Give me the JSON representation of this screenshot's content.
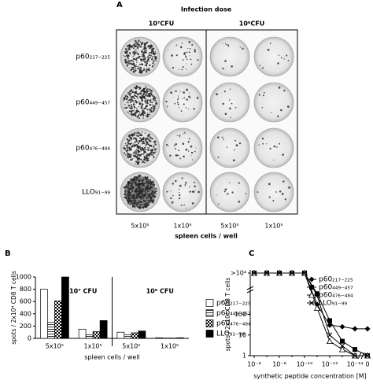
{
  "panel_a": {
    "label": "A",
    "title": "Infection dose",
    "doses": [
      "10⁷CFU",
      "10⁶CFU"
    ],
    "rows": [
      "p60₂₁₇₋₂₂₅",
      "p60₄₄₉₋₄₅₇",
      "p60₄₇₆₋₄₈₄",
      "LLO₉₁₋₉₉"
    ],
    "columns": [
      "5x10⁵",
      "1x10⁵",
      "5x10⁵",
      "1x10⁵"
    ],
    "xlabel": "spleen cells / well"
  },
  "chart_data": [
    {
      "type": "bar",
      "panel": "B",
      "ylabel": "spots / 2x10⁴ CD8 T cells",
      "xlabel": "spleen cells / well",
      "groups": [
        "10⁷ CFU",
        "10⁶ CFU"
      ],
      "categories": [
        "5x10⁵",
        "1x10⁵",
        "5x10⁵",
        "1x10⁵"
      ],
      "ylim": [
        0,
        1000
      ],
      "yticks": [
        0,
        200,
        400,
        600,
        800,
        1000
      ],
      "legend": "right",
      "series": [
        {
          "name": "p60₂₁₇₋₂₂₅",
          "color": "#ffffff",
          "values": [
            800,
            150,
            100,
            10
          ]
        },
        {
          "name": "p60₄₄₉₋₄₅₇",
          "color": "#ffffff",
          "pattern": "hlines",
          "values": [
            260,
            60,
            60,
            5
          ]
        },
        {
          "name": "p60₄₇₆₋₄₈₄",
          "color": "#ffffff",
          "pattern": "checker",
          "values": [
            610,
            110,
            90,
            5
          ]
        },
        {
          "name": "LLO₉₁₋₉₉",
          "color": "#000000",
          "values": [
            1000,
            290,
            120,
            10
          ]
        }
      ]
    },
    {
      "type": "line",
      "panel": "C",
      "ylabel": "spots / 2x10⁴ CD8 T cells",
      "xlabel": "synthetic peptide concentration [M]",
      "categories": [
        "10⁻⁶",
        null,
        "10⁻⁸",
        null,
        "10⁻¹⁰",
        null,
        "10⁻¹²",
        null,
        "10⁻¹⁴",
        "0"
      ],
      "ylog": true,
      "ylim": [
        1,
        10000
      ],
      "yticks": [
        1,
        10,
        100,
        {
          "value": 10000,
          "label": ">10⁴"
        }
      ],
      "legend": "upper right",
      "series": [
        {
          "name": "p60₂₁₇₋₂₂₅",
          "color": "#000000",
          "marker": "diamond",
          "values": [
            10000,
            10000,
            10000,
            10000,
            10000,
            300,
            30,
            25,
            20,
            20
          ]
        },
        {
          "name": "p60₄₄₉₋₄₅₇",
          "color": "#000000",
          "marker": "square",
          "values": [
            10000,
            10000,
            10000,
            10000,
            10000,
            1000,
            50,
            5,
            2,
            1
          ]
        },
        {
          "name": "p60₄₇₆₋₄₈₄",
          "color": "#000000",
          "marker": "triangle-open",
          "values": [
            10000,
            10000,
            10000,
            10000,
            10000,
            200,
            5,
            2,
            1,
            1
          ]
        },
        {
          "name": "LLO₉₁₋₉₉",
          "color": "#000000",
          "marker": "x",
          "values": [
            10000,
            10000,
            10000,
            10000,
            10000,
            800,
            10,
            3,
            1,
            1
          ]
        }
      ]
    }
  ]
}
